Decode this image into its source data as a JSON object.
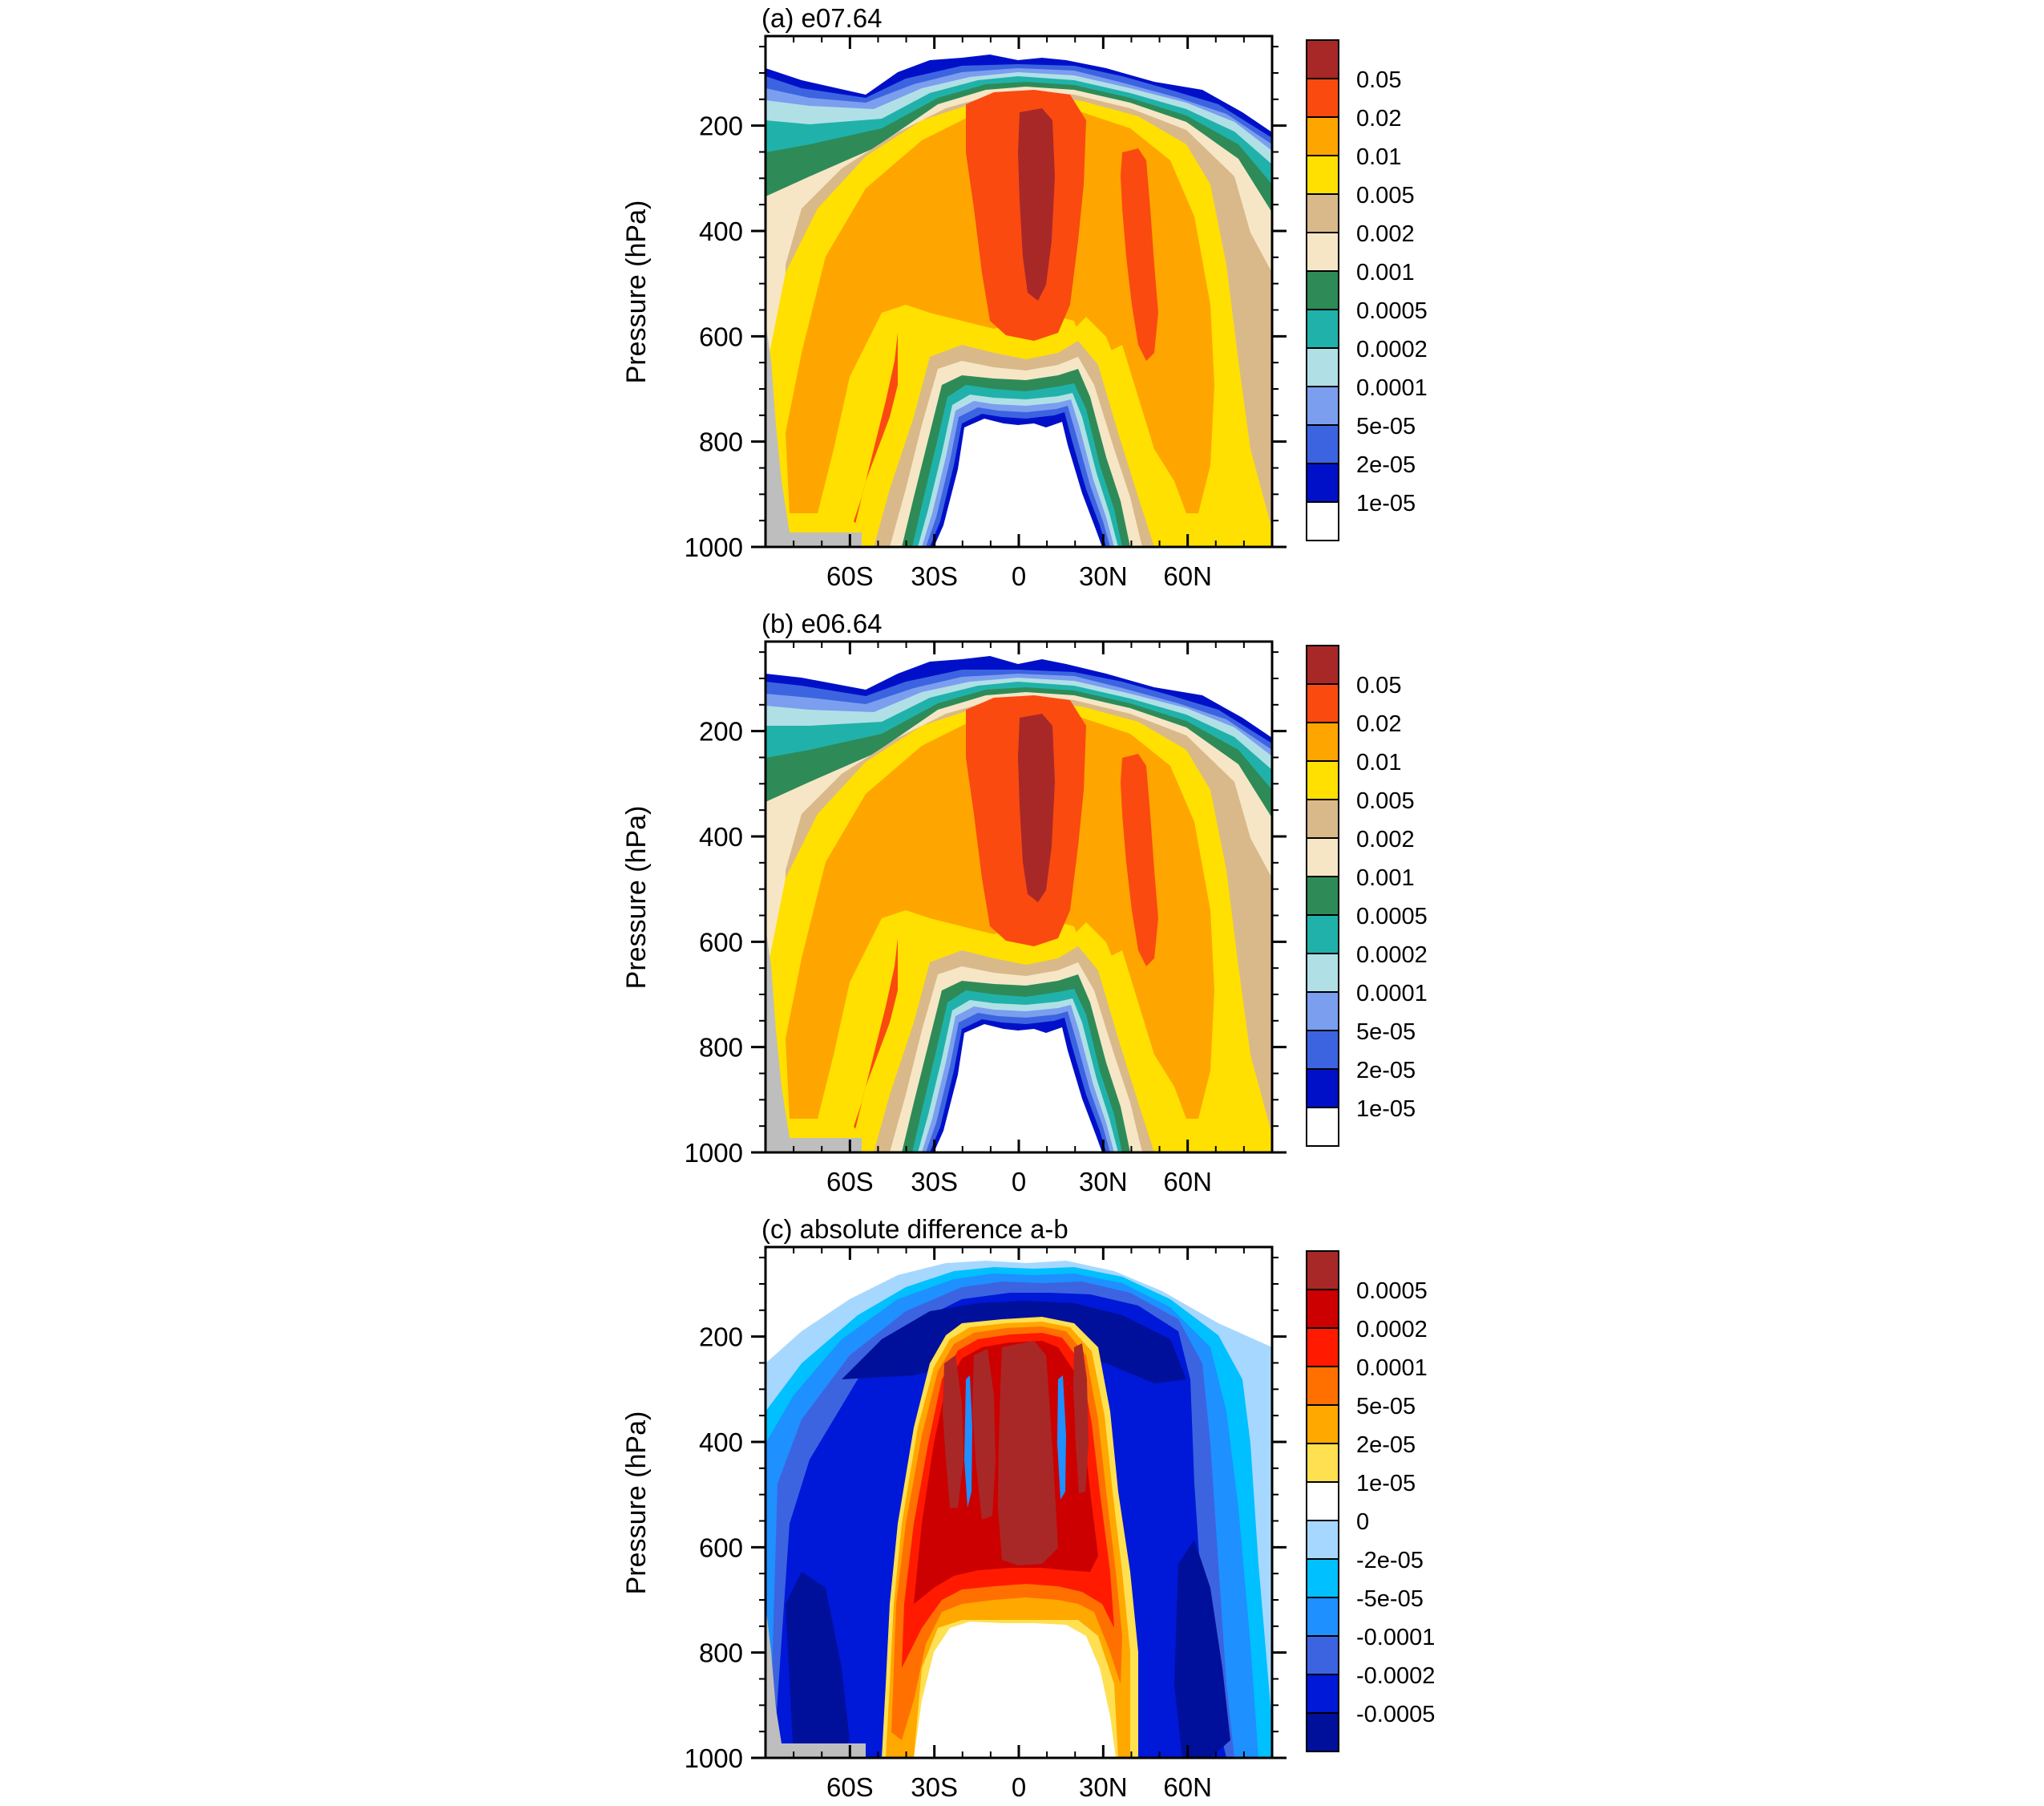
{
  "figure": {
    "panels": [
      {
        "title": "(a) e07.64",
        "ylabel": "Pressure (hPa)",
        "xticks": [
          "60S",
          "30S",
          "0",
          "30N",
          "60N"
        ],
        "yticks": [
          "200",
          "400",
          "600",
          "800",
          "1000"
        ],
        "colorbar_labels": [
          "0.05",
          "0.02",
          "0.01",
          "0.005",
          "0.002",
          "0.001",
          "0.0005",
          "0.0002",
          "0.0001",
          "5e-05",
          "2e-05",
          "1e-05"
        ]
      },
      {
        "title": "(b) e06.64",
        "ylabel": "Pressure (hPa)",
        "xticks": [
          "60S",
          "30S",
          "0",
          "30N",
          "60N"
        ],
        "yticks": [
          "200",
          "400",
          "600",
          "800",
          "1000"
        ],
        "colorbar_labels": [
          "0.05",
          "0.02",
          "0.01",
          "0.005",
          "0.002",
          "0.001",
          "0.0005",
          "0.0002",
          "0.0001",
          "5e-05",
          "2e-05",
          "1e-05"
        ]
      },
      {
        "title": "(c) absolute difference a-b",
        "ylabel": "Pressure (hPa)",
        "xticks": [
          "60S",
          "30S",
          "0",
          "30N",
          "60N"
        ],
        "yticks": [
          "200",
          "400",
          "600",
          "800",
          "1000"
        ],
        "colorbar_labels": [
          "0.0005",
          "0.0002",
          "0.0001",
          "5e-05",
          "2e-05",
          "1e-05",
          "0",
          "-2e-05",
          "-5e-05",
          "-0.0001",
          "-0.0002",
          "-0.0005"
        ]
      }
    ],
    "colors": {
      "ab_palette": [
        "#a82828",
        "#fa4a10",
        "#ffa500",
        "#ffe000",
        "#d9b98a",
        "#f6e6c6",
        "#2e8b57",
        "#20b2aa",
        "#b0e0e6",
        "#7b9eef",
        "#3c64e0",
        "#0010c8",
        "#ffffff"
      ],
      "diff_palette": [
        "#a82828",
        "#cc0000",
        "#ff1a00",
        "#ff7000",
        "#ffa800",
        "#ffe050",
        "#ffffff",
        "#a6d8ff",
        "#00c0ff",
        "#1e90ff",
        "#3c64e0",
        "#0018d8",
        "#00109a"
      ],
      "missing": "#bebebe"
    }
  },
  "chart_data": [
    {
      "type": "heatmap",
      "title": "(a) e07.64",
      "xlabel": "",
      "ylabel": "Pressure (hPa)",
      "x_ticks": [
        "60S",
        "30S",
        "0",
        "30N",
        "60N"
      ],
      "y_ticks": [
        200,
        400,
        600,
        800,
        1000
      ],
      "y_reversed": true,
      "xlim": [
        -90,
        90
      ],
      "ylim": [
        1000,
        30
      ],
      "levels": [
        1e-05,
        2e-05,
        5e-05,
        0.0001,
        0.0002,
        0.0005,
        0.001,
        0.002,
        0.005,
        0.01,
        0.02,
        0.05
      ],
      "regions": [
        {
          "level": 0.05,
          "center_lat": 5,
          "pressure_range": [
            170,
            550
          ]
        },
        {
          "level": 0.02,
          "center_lat": 0,
          "pressure_range": [
            120,
            600
          ]
        },
        {
          "level": 0.02,
          "center_lat": -55,
          "pressure_range": [
            600,
            950
          ]
        },
        {
          "level": 0.02,
          "center_lat": 42,
          "pressure_range": [
            230,
            640
          ]
        },
        {
          "level": 1e-05,
          "center_lat": 3,
          "pressure_range": [
            770,
            1000
          ],
          "note": "below lowest level"
        }
      ],
      "colorbar_labels": [
        "0.05",
        "0.02",
        "0.01",
        "0.005",
        "0.002",
        "0.001",
        "0.0005",
        "0.0002",
        "0.0001",
        "5e-05",
        "2e-05",
        "1e-05"
      ]
    },
    {
      "type": "heatmap",
      "title": "(b) e06.64",
      "xlabel": "",
      "ylabel": "Pressure (hPa)",
      "x_ticks": [
        "60S",
        "30S",
        "0",
        "30N",
        "60N"
      ],
      "y_ticks": [
        200,
        400,
        600,
        800,
        1000
      ],
      "y_reversed": true,
      "xlim": [
        -90,
        90
      ],
      "ylim": [
        1000,
        30
      ],
      "levels": [
        1e-05,
        2e-05,
        5e-05,
        0.0001,
        0.0002,
        0.0005,
        0.001,
        0.002,
        0.005,
        0.01,
        0.02,
        0.05
      ],
      "regions": [
        {
          "level": 0.05,
          "center_lat": 5,
          "pressure_range": [
            170,
            520
          ]
        },
        {
          "level": 0.02,
          "center_lat": 0,
          "pressure_range": [
            120,
            600
          ]
        },
        {
          "level": 0.02,
          "center_lat": -55,
          "pressure_range": [
            580,
            950
          ]
        },
        {
          "level": 0.02,
          "center_lat": 42,
          "pressure_range": [
            230,
            640
          ]
        },
        {
          "level": 1e-05,
          "center_lat": 3,
          "pressure_range": [
            770,
            1000
          ],
          "note": "below lowest level"
        }
      ],
      "colorbar_labels": [
        "0.05",
        "0.02",
        "0.01",
        "0.005",
        "0.002",
        "0.001",
        "0.0005",
        "0.0002",
        "0.0001",
        "5e-05",
        "2e-05",
        "1e-05"
      ]
    },
    {
      "type": "heatmap",
      "title": "(c) absolute difference a-b",
      "xlabel": "",
      "ylabel": "Pressure (hPa)",
      "x_ticks": [
        "60S",
        "30S",
        "0",
        "30N",
        "60N"
      ],
      "y_ticks": [
        200,
        400,
        600,
        800,
        1000
      ],
      "y_reversed": true,
      "xlim": [
        -90,
        90
      ],
      "ylim": [
        1000,
        30
      ],
      "levels": [
        -0.0005,
        -0.0002,
        -0.0001,
        -5e-05,
        -2e-05,
        0,
        1e-05,
        2e-05,
        5e-05,
        0.0001,
        0.0002,
        0.0005
      ],
      "regions": [
        {
          "level": 0.0005,
          "center_lat": 0,
          "pressure_range": [
            180,
            650
          ],
          "note": "positive tropical maximum"
        },
        {
          "level": 0.0002,
          "center_lat": -35,
          "pressure_range": [
            620,
            950
          ]
        },
        {
          "level": -0.0005,
          "center_lat": 0,
          "pressure_range": [
            90,
            220
          ],
          "note": "negative upper-level band"
        },
        {
          "level": -0.0005,
          "center_lat": -70,
          "pressure_range": [
            600,
            1000
          ]
        },
        {
          "level": -0.0005,
          "center_lat": 60,
          "pressure_range": [
            650,
            1000
          ]
        }
      ],
      "colorbar_labels": [
        "0.0005",
        "0.0002",
        "0.0001",
        "5e-05",
        "2e-05",
        "1e-05",
        "0",
        "-2e-05",
        "-5e-05",
        "-0.0001",
        "-0.0002",
        "-0.0005"
      ]
    }
  ]
}
